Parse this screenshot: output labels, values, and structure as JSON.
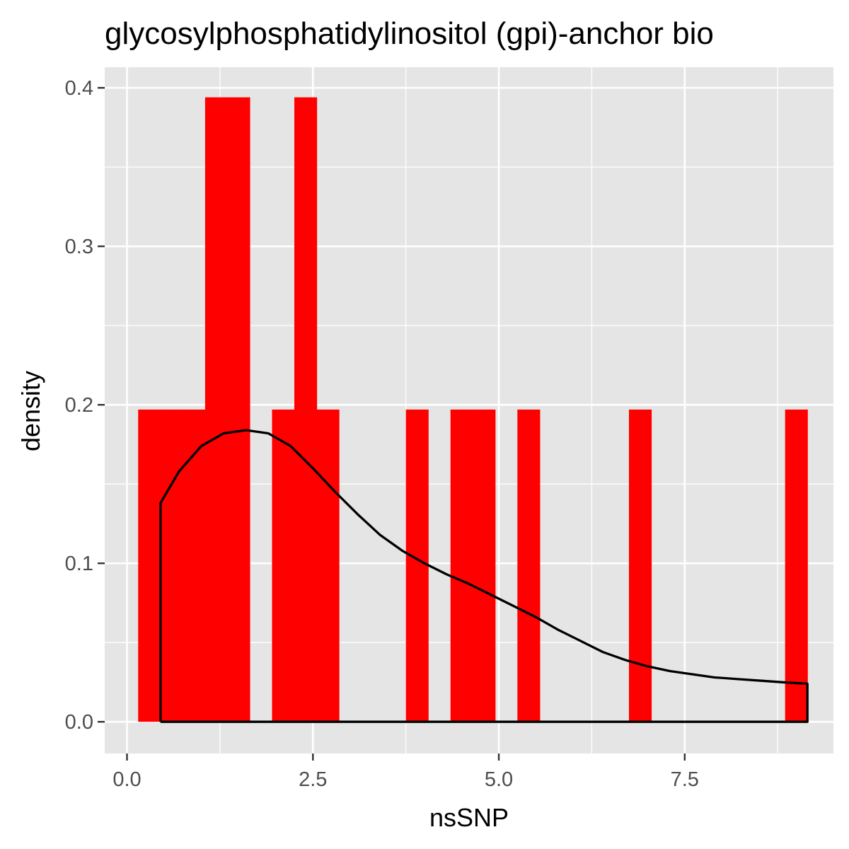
{
  "chart_data": {
    "type": "bar",
    "title": "glycosylphosphatidylinositol (gpi)-anchor bio",
    "xlabel": "nsSNP",
    "ylabel": "density",
    "xlim": [
      -0.3,
      9.5
    ],
    "ylim": [
      -0.02,
      0.413
    ],
    "x_ticks": [
      0.0,
      2.5,
      5.0,
      7.5
    ],
    "x_tick_labels": [
      "0.0",
      "2.5",
      "5.0",
      "7.5"
    ],
    "y_ticks": [
      0.0,
      0.1,
      0.2,
      0.3,
      0.4
    ],
    "y_tick_labels": [
      "0.0",
      "0.1",
      "0.2",
      "0.3",
      "0.4"
    ],
    "grid": true,
    "colors": {
      "panel_bg": "#e5e5e5",
      "grid": "#ffffff",
      "bar_fill": "#ff0000",
      "density_line": "#000000",
      "tick_mark": "#333333"
    },
    "histogram": {
      "bin_width": 0.3,
      "bins": [
        {
          "x0": 0.15,
          "x1": 0.45,
          "density": 0.197
        },
        {
          "x0": 0.45,
          "x1": 0.75,
          "density": 0.197
        },
        {
          "x0": 0.75,
          "x1": 1.05,
          "density": 0.197
        },
        {
          "x0": 1.05,
          "x1": 1.35,
          "density": 0.394
        },
        {
          "x0": 1.35,
          "x1": 1.65,
          "density": 0.394
        },
        {
          "x0": 1.95,
          "x1": 2.25,
          "density": 0.197
        },
        {
          "x0": 2.25,
          "x1": 2.55,
          "density": 0.394
        },
        {
          "x0": 2.55,
          "x1": 2.85,
          "density": 0.197
        },
        {
          "x0": 3.75,
          "x1": 4.05,
          "density": 0.197
        },
        {
          "x0": 4.35,
          "x1": 4.65,
          "density": 0.197
        },
        {
          "x0": 4.65,
          "x1": 4.95,
          "density": 0.197
        },
        {
          "x0": 5.25,
          "x1": 5.55,
          "density": 0.197
        },
        {
          "x0": 6.75,
          "x1": 7.05,
          "density": 0.197
        },
        {
          "x0": 8.85,
          "x1": 9.15,
          "density": 0.197
        }
      ]
    },
    "density_curve": {
      "x": [
        0.45,
        0.45,
        0.7,
        1.0,
        1.3,
        1.6,
        1.9,
        2.2,
        2.5,
        2.8,
        3.1,
        3.4,
        3.7,
        4.0,
        4.3,
        4.6,
        4.9,
        5.2,
        5.5,
        5.8,
        6.1,
        6.4,
        6.7,
        7.0,
        7.3,
        7.6,
        7.9,
        8.2,
        8.5,
        8.8,
        9.15,
        9.15,
        0.45
      ],
      "y": [
        0.0,
        0.138,
        0.158,
        0.174,
        0.182,
        0.184,
        0.182,
        0.174,
        0.16,
        0.145,
        0.131,
        0.118,
        0.108,
        0.1,
        0.093,
        0.087,
        0.08,
        0.073,
        0.066,
        0.058,
        0.051,
        0.044,
        0.039,
        0.035,
        0.032,
        0.03,
        0.028,
        0.027,
        0.026,
        0.025,
        0.024,
        0.0,
        0.0
      ]
    }
  }
}
